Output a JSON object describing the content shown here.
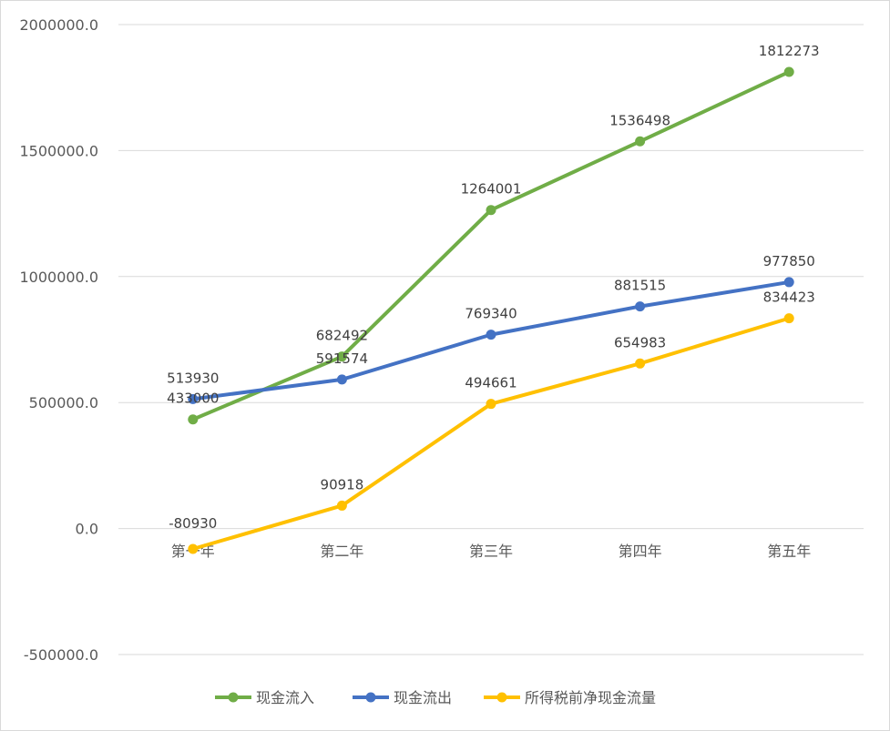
{
  "chart_data": {
    "type": "line",
    "categories": [
      "第一年",
      "第二年",
      "第三年",
      "第四年",
      "第五年"
    ],
    "ylim": [
      -500000,
      2000000
    ],
    "yticks": [
      "2000000.0",
      "1500000.0",
      "1000000.0",
      "500000.0",
      "0.0",
      "-500000.0"
    ],
    "ytick_values": [
      2000000,
      1500000,
      1000000,
      500000,
      0,
      -500000
    ],
    "grid": true,
    "legend_position": "bottom",
    "series": [
      {
        "name": "现金流入",
        "color": "#70ad47",
        "values": [
          433000,
          682492,
          1264001,
          1536498,
          1812273
        ],
        "labels": [
          "433000",
          "682492",
          "1264001",
          "1536498",
          "1812273"
        ]
      },
      {
        "name": "现金流出",
        "color": "#4472c4",
        "values": [
          513930,
          591574,
          769340,
          881515,
          977850
        ],
        "labels": [
          "513930",
          "591574",
          "769340",
          "881515",
          "977850"
        ]
      },
      {
        "name": "所得税前净现金流量",
        "color": "#ffc000",
        "values": [
          -80930,
          90918,
          494661,
          654983,
          834423
        ],
        "labels": [
          "-80930",
          "90918",
          "494661",
          "654983",
          "834423"
        ]
      }
    ]
  }
}
